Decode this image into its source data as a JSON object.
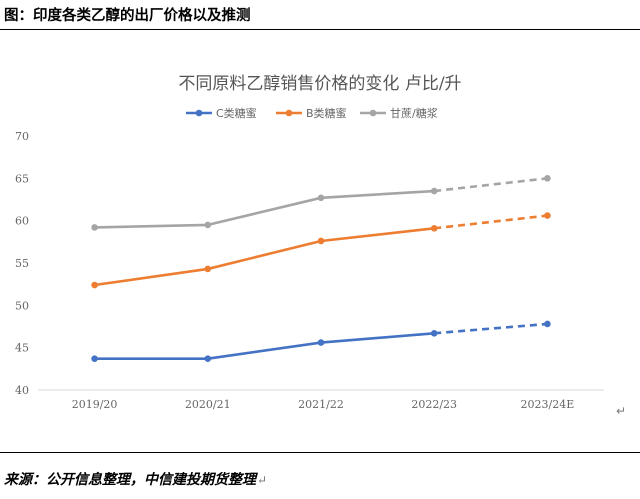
{
  "figure_caption": "图：印度各类乙醇的出厂价格以及推测",
  "source_text": "来源：公开信息整理，中信建投期货整理",
  "return_glyph": "↵",
  "chart_data": {
    "type": "line",
    "title": "不同原料乙醇销售价格的变化 卢比/升",
    "categories": [
      "2019/20",
      "2020/21",
      "2021/22",
      "2022/23",
      "2023/24E"
    ],
    "y_ticks": [
      40,
      45,
      50,
      55,
      60,
      65,
      70
    ],
    "ylim": [
      40,
      70
    ],
    "grid": false,
    "legend_position": "top",
    "forecast_from_index": 3,
    "series": [
      {
        "name": "C类糖蜜",
        "color": "#4472C4",
        "values": [
          43.7,
          43.7,
          45.6,
          46.7,
          47.8
        ]
      },
      {
        "name": "B类糖蜜",
        "color": "#ED7D31",
        "values": [
          52.4,
          54.3,
          57.6,
          59.1,
          60.6
        ]
      },
      {
        "name": "甘蔗/糖浆",
        "color": "#A5A5A5",
        "values": [
          59.2,
          59.5,
          62.7,
          63.5,
          65.0
        ]
      }
    ]
  }
}
